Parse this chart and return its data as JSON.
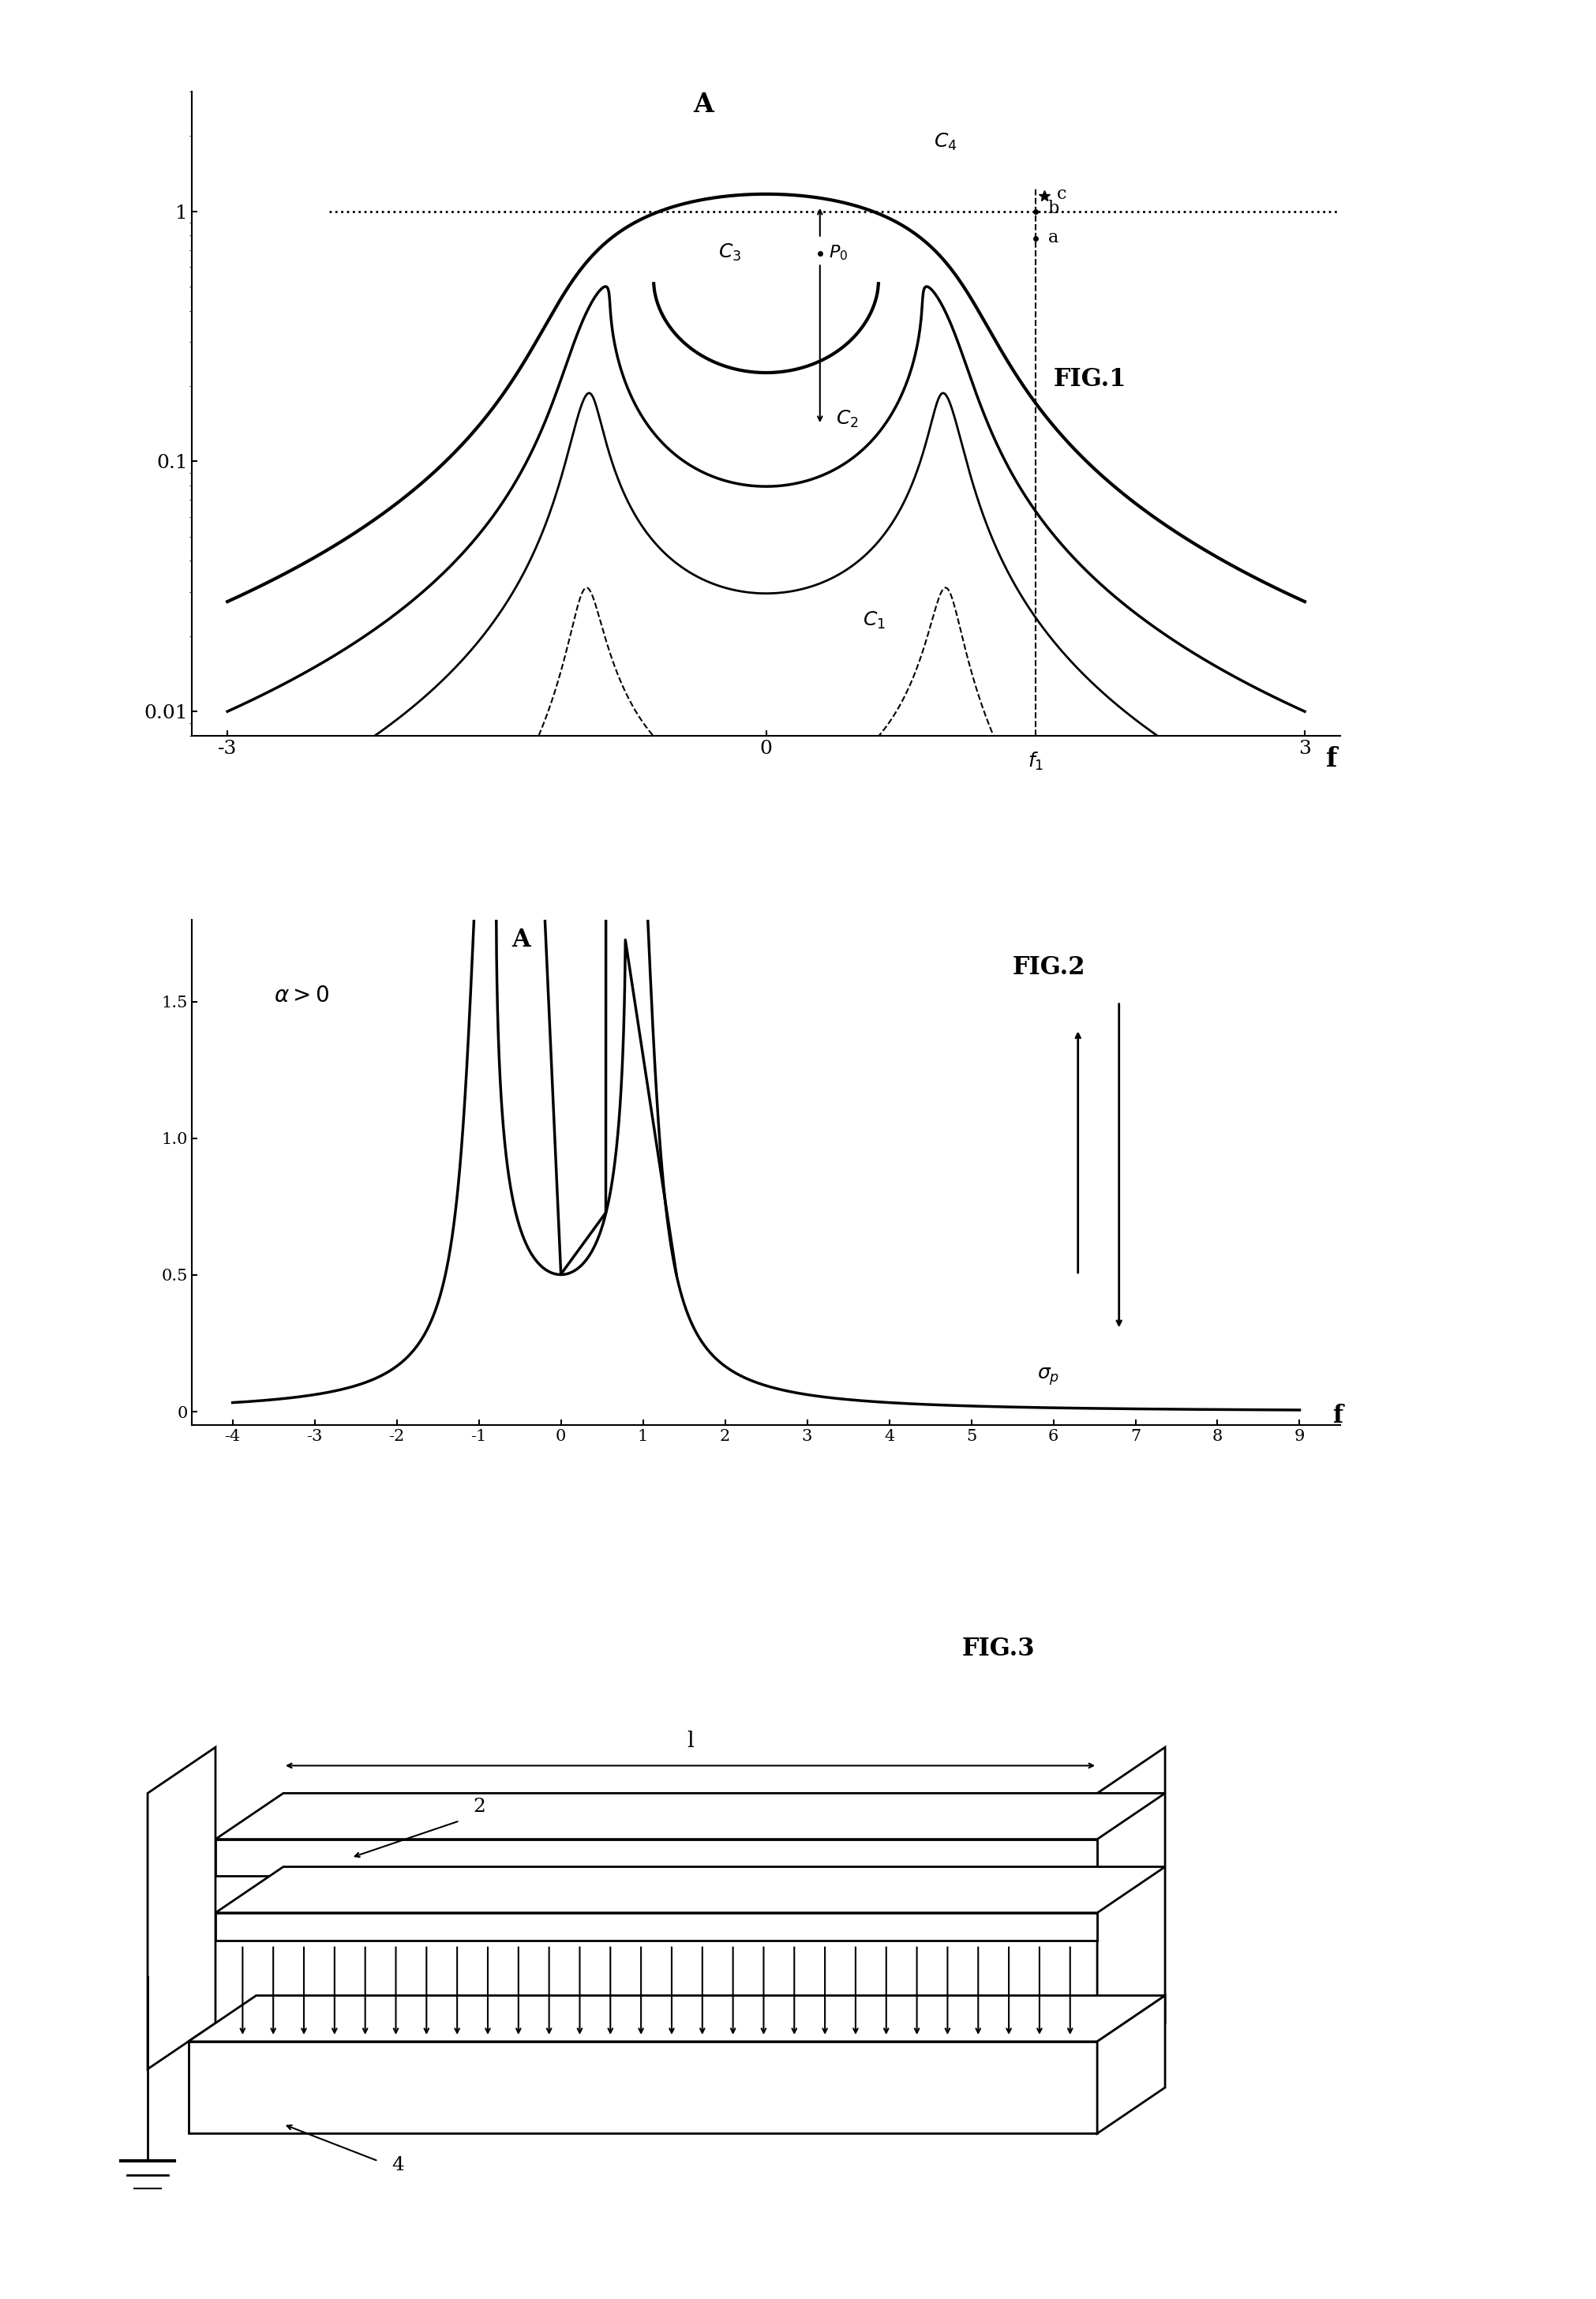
{
  "fig1_title": "FIG.1",
  "fig2_title": "FIG.2",
  "fig3_title": "FIG.3",
  "fig1_xlabel": "f",
  "fig1_ylabel": "A",
  "fig2_xlabel": "f",
  "fig2_ylabel": "A",
  "fig1_yticks": [
    0.01,
    0.1,
    1
  ],
  "fig1_ytick_labels": [
    "0.01",
    "0.1",
    "1"
  ],
  "fig1_xticks": [
    -3,
    0,
    3
  ],
  "fig1_xtick_labels": [
    "-3",
    "0",
    "3"
  ],
  "fig2_yticks": [
    0,
    0.5,
    1.0,
    1.5
  ],
  "fig2_xticks": [
    -4,
    -3,
    -2,
    -1,
    0,
    1,
    2,
    3,
    4,
    5,
    6,
    7,
    8,
    9
  ],
  "bg_color": "#ffffff",
  "line_color": "#000000"
}
